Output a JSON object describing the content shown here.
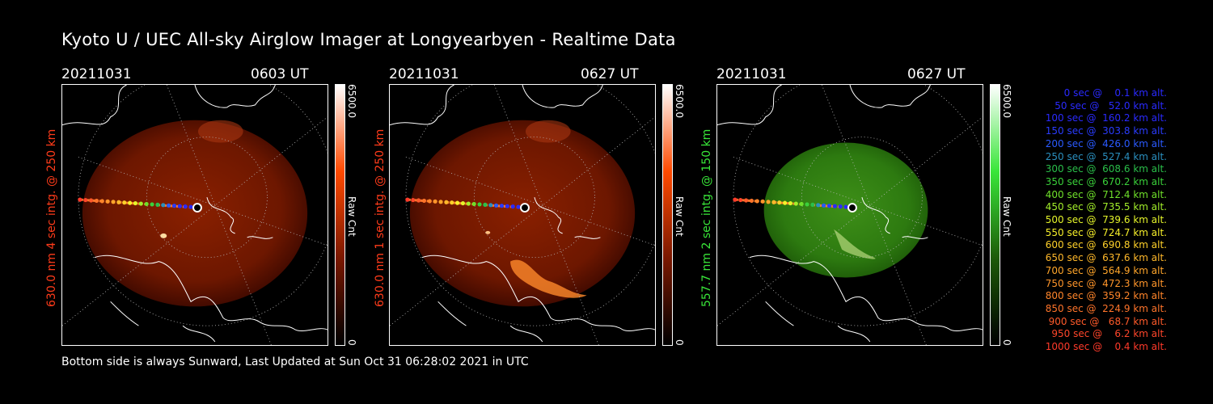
{
  "page": {
    "title": "Kyoto U / UEC All-sky Airglow Imager at Longyearbyen - Realtime Data",
    "footer": "Bottom side is always Sunward, Last Updated at Sun Oct 31 06:28:02 2021 in UTC"
  },
  "panels": [
    {
      "date": "20211031",
      "time": "0603 UT",
      "ylabel": "630.0 nm  4 sec intg. @ 250 km",
      "color": "#ff3b1a",
      "cbar_max": "6500.0",
      "cbar_min": "0",
      "cbar_label": "Raw Cnt"
    },
    {
      "date": "20211031",
      "time": "0627 UT",
      "ylabel": "630.0 nm  1 sec intg. @ 250 km",
      "color": "#ff3b1a",
      "cbar_max": "6500.0",
      "cbar_min": "0",
      "cbar_label": "Raw Cnt"
    },
    {
      "date": "20211031",
      "time": "0627 UT",
      "ylabel": "557.7 nm  2 sec intg. @ 150 km",
      "color": "#39e639",
      "cbar_max": "6500.0",
      "cbar_min": "0",
      "cbar_label": "Raw Cnt"
    }
  ],
  "legend": [
    {
      "text": "  0 sec @    0.1 km alt.",
      "color": "#2a2aff"
    },
    {
      "text": " 50 sec @   52.0 km alt.",
      "color": "#2a2aff"
    },
    {
      "text": "100 sec @  160.2 km alt.",
      "color": "#2a2aff"
    },
    {
      "text": "150 sec @  303.8 km alt.",
      "color": "#2a3cff"
    },
    {
      "text": "200 sec @  426.0 km alt.",
      "color": "#2a5aff"
    },
    {
      "text": "250 sec @  527.4 km alt.",
      "color": "#2a8fbf"
    },
    {
      "text": "300 sec @  608.6 km alt.",
      "color": "#2abf4a"
    },
    {
      "text": "350 sec @  670.2 km alt.",
      "color": "#3ad13a"
    },
    {
      "text": "400 sec @  712.4 km alt.",
      "color": "#6fe02a"
    },
    {
      "text": "450 sec @  735.5 km alt.",
      "color": "#a3ef2a"
    },
    {
      "text": "500 sec @  739.6 km alt.",
      "color": "#e5f52a"
    },
    {
      "text": "550 sec @  724.7 km alt.",
      "color": "#f7f02a"
    },
    {
      "text": "600 sec @  690.8 km alt.",
      "color": "#ffd12a"
    },
    {
      "text": "650 sec @  637.6 km alt.",
      "color": "#ffb82a"
    },
    {
      "text": "700 sec @  564.9 km alt.",
      "color": "#ffa52a"
    },
    {
      "text": "750 sec @  472.3 km alt.",
      "color": "#ff952a"
    },
    {
      "text": "800 sec @  359.2 km alt.",
      "color": "#ff852a"
    },
    {
      "text": "850 sec @  224.9 km alt.",
      "color": "#ff742a"
    },
    {
      "text": "900 sec @   68.7 km alt.",
      "color": "#ff5a2a"
    },
    {
      "text": "950 sec @    6.2 km alt.",
      "color": "#ff462a"
    },
    {
      "text": "1000 sec @    0.4 km alt.",
      "color": "#ff3a2a"
    }
  ]
}
